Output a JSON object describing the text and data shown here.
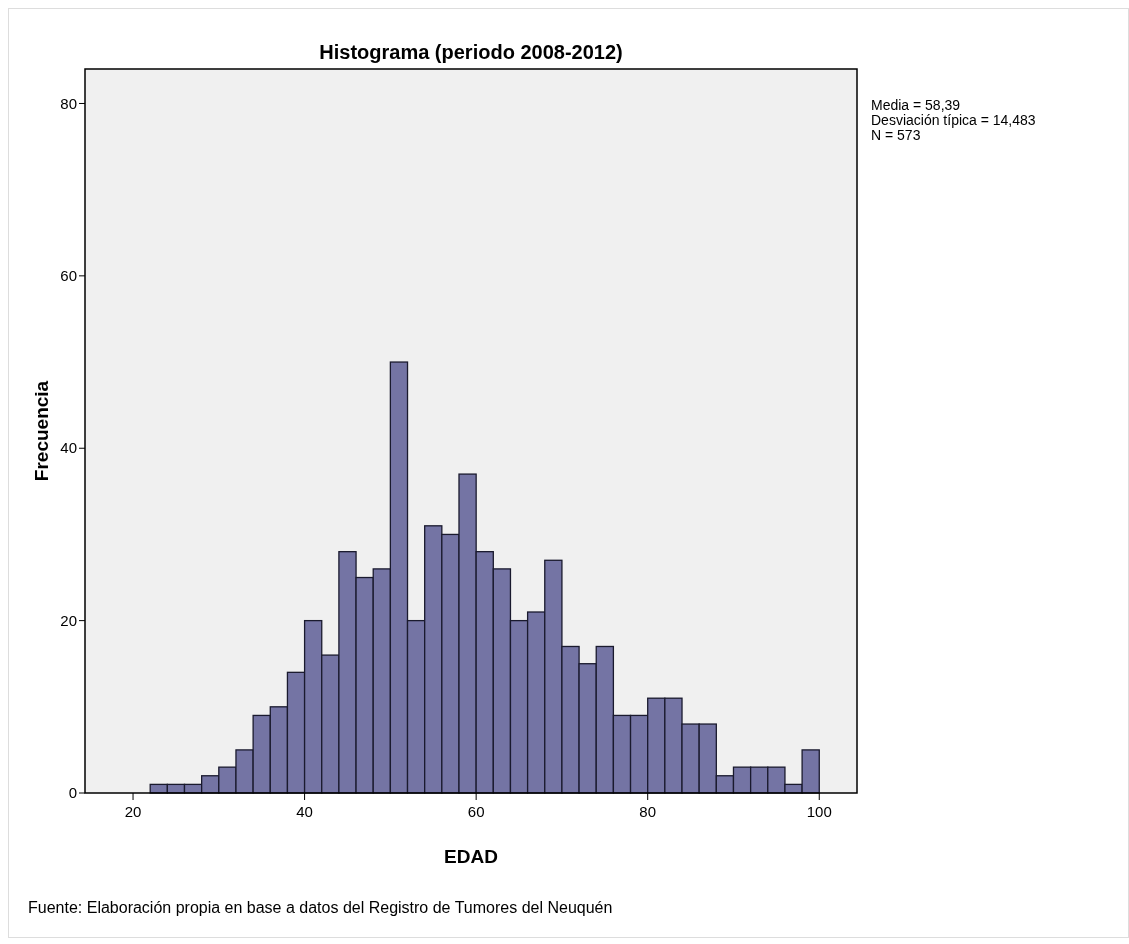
{
  "chart_data": {
    "type": "histogram",
    "title": "Histograma (periodo 2008-2012)",
    "xlabel": "EDAD",
    "ylabel": "Frecuencia",
    "bins": [
      22,
      24,
      26,
      28,
      30,
      32,
      34,
      36,
      38,
      40,
      42,
      44,
      46,
      48,
      50,
      52,
      54,
      56,
      58,
      60,
      62,
      64,
      66,
      68,
      70,
      72,
      74,
      76,
      78,
      80,
      82,
      84,
      86,
      88,
      90,
      92,
      94,
      96,
      98,
      100
    ],
    "values": [
      1,
      1,
      1,
      2,
      3,
      5,
      9,
      10,
      14,
      20,
      16,
      28,
      25,
      26,
      50,
      20,
      31,
      30,
      37,
      28,
      26,
      20,
      21,
      27,
      17,
      15,
      17,
      9,
      9,
      11,
      11,
      8,
      8,
      2,
      3,
      3,
      3,
      1,
      5
    ],
    "color": "#7474a4",
    "xlim": [
      14.4,
      104.4
    ],
    "ylim": [
      0,
      84
    ],
    "xticks": [
      20,
      40,
      60,
      80,
      100
    ],
    "yticks": [
      0,
      20,
      40,
      60,
      80
    ],
    "grid": false,
    "annotations": [
      "Media = 58,39",
      "Desviación típica = 14,483",
      "N = 573",
      "Fuente: Elaboración propia en base a datos del Registro de Tumores del Neuquén"
    ]
  }
}
